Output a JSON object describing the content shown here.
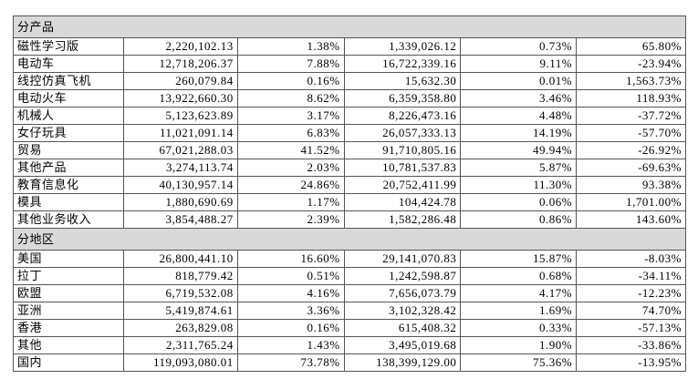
{
  "sections": [
    {
      "title": "分产品",
      "rows": [
        [
          "磁性学习版",
          "2,220,102.13",
          "1.38%",
          "1,339,026.12",
          "0.73%",
          "65.80%"
        ],
        [
          "电动车",
          "12,718,206.37",
          "7.88%",
          "16,722,339.16",
          "9.11%",
          "-23.94%"
        ],
        [
          "线控仿真飞机",
          "260,079.84",
          "0.16%",
          "15,632.30",
          "0.01%",
          "1,563.73%"
        ],
        [
          "电动火车",
          "13,922,660.30",
          "8.62%",
          "6,359,358.80",
          "3.46%",
          "118.93%"
        ],
        [
          "机械人",
          "5,123,623.89",
          "3.17%",
          "8,226,473.16",
          "4.48%",
          "-37.72%"
        ],
        [
          "女仔玩具",
          "11,021,091.14",
          "6.83%",
          "26,057,333.13",
          "14.19%",
          "-57.70%"
        ],
        [
          "贸易",
          "67,021,288.03",
          "41.52%",
          "91,710,805.16",
          "49.94%",
          "-26.92%"
        ],
        [
          "其他产品",
          "3,274,113.74",
          "2.03%",
          "10,781,537.83",
          "5.87%",
          "-69.63%"
        ],
        [
          "教育信息化",
          "40,130,957.14",
          "24.86%",
          "20,752,411.99",
          "11.30%",
          "93.38%"
        ],
        [
          "模具",
          "1,880,690.69",
          "1.17%",
          "104,424.78",
          "0.06%",
          "1,701.00%"
        ],
        [
          "其他业务收入",
          "3,854,488.27",
          "2.39%",
          "1,582,286.48",
          "0.86%",
          "143.60%"
        ]
      ]
    },
    {
      "title": "分地区",
      "rows": [
        [
          "美国",
          "26,800,441.10",
          "16.60%",
          "29,141,070.83",
          "15.87%",
          "-8.03%"
        ],
        [
          "拉丁",
          "818,779.42",
          "0.51%",
          "1,242,598.87",
          "0.68%",
          "-34.11%"
        ],
        [
          "欧盟",
          "6,719,532.08",
          "4.16%",
          "7,656,073.79",
          "4.17%",
          "-12.23%"
        ],
        [
          "亚洲",
          "5,419,874.61",
          "3.36%",
          "3,102,328.42",
          "1.69%",
          "74.70%"
        ],
        [
          "香港",
          "263,829.08",
          "0.16%",
          "615,408.32",
          "0.33%",
          "-57.13%"
        ],
        [
          "其他",
          "2,311,765.24",
          "1.43%",
          "3,495,019.68",
          "1.90%",
          "-33.86%"
        ],
        [
          "国内",
          "119,093,080.01",
          "73.78%",
          "138,399,129.00",
          "75.36%",
          "-13.95%"
        ]
      ]
    }
  ]
}
